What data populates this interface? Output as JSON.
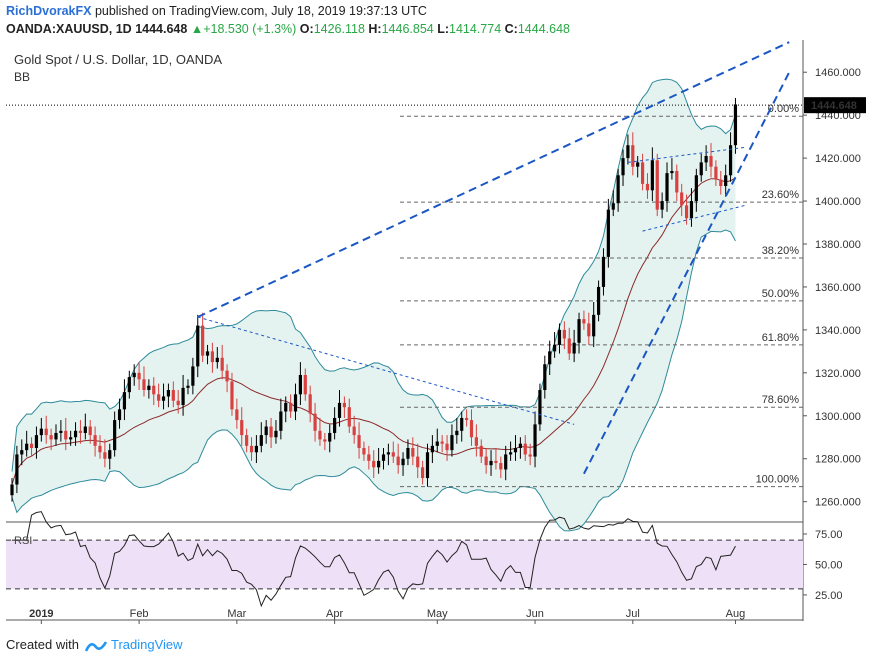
{
  "header": {
    "author": "RichDvorakFX",
    "published": "published on TradingView.com, July 18, 2019 19:37:13 UTC",
    "symbol": "OANDA:XAUUSD, 1D",
    "last": "1444.648",
    "change_icon": "triangle-up-icon",
    "change": "+18.530 (+1.3%)",
    "o_label": "O:",
    "o": "1426.118",
    "h_label": "H:",
    "h": "1446.854",
    "l_label": "L:",
    "l": "1414.774",
    "c_label": "C:",
    "c": "1444.648"
  },
  "legend": {
    "title": "Gold Spot / U.S. Dollar, 1D, OANDA",
    "indicator": "BB"
  },
  "rsi_label": "RSI",
  "footer": {
    "created_with": "Created with",
    "brand": "TradingView"
  },
  "colors": {
    "up": "#000000",
    "down": "#d94040",
    "bb_fill": "#e4f3f0",
    "bb_line": "#2e8a9a",
    "basis": "#8b2a2a",
    "trend": "#1a56c4",
    "rsi_fill": "#eee1f7"
  },
  "chart_data": {
    "type": "candlestick",
    "price_axis": {
      "ticks": [
        "1460.000",
        "1440.000",
        "1420.000",
        "1400.000",
        "1380.000",
        "1360.000",
        "1340.000",
        "1320.000",
        "1300.000",
        "1280.000",
        "1260.000"
      ],
      "range": [
        1251,
        1475
      ]
    },
    "rsi_axis": {
      "ticks": [
        "75.00",
        "50.00",
        "25.00"
      ],
      "range": [
        20,
        84
      ]
    },
    "x_ticks": [
      "2019",
      "Feb",
      "Mar",
      "Apr",
      "May",
      "Jun",
      "Jul",
      "Aug"
    ],
    "last_price": "1444.648",
    "fib_levels": [
      {
        "label": "0.00%",
        "value": 1439.5
      },
      {
        "label": "23.60%",
        "value": 1399.5
      },
      {
        "label": "38.20%",
        "value": 1373.5
      },
      {
        "label": "50.00%",
        "value": 1353.5
      },
      {
        "label": "61.80%",
        "value": 1333.0
      },
      {
        "label": "78.60%",
        "value": 1304.0
      },
      {
        "label": "100.00%",
        "value": 1267.0
      }
    ],
    "closes": [
      1268,
      1282,
      1284,
      1287,
      1285,
      1291,
      1294,
      1291,
      1289,
      1292,
      1293,
      1289,
      1290,
      1293,
      1292,
      1295,
      1291,
      1286,
      1283,
      1280,
      1284,
      1298,
      1303,
      1311,
      1318,
      1320,
      1317,
      1312,
      1314,
      1310,
      1307,
      1309,
      1312,
      1307,
      1305,
      1313,
      1314,
      1323,
      1342,
      1328,
      1330,
      1325,
      1327,
      1321,
      1316,
      1303,
      1298,
      1291,
      1286,
      1283,
      1286,
      1291,
      1295,
      1290,
      1293,
      1302,
      1306,
      1302,
      1310,
      1319,
      1310,
      1301,
      1293,
      1289,
      1288,
      1292,
      1299,
      1306,
      1304,
      1295,
      1291,
      1285,
      1282,
      1279,
      1276,
      1279,
      1282,
      1283,
      1281,
      1277,
      1280,
      1285,
      1281,
      1276,
      1271,
      1283,
      1286,
      1288,
      1287,
      1284,
      1291,
      1293,
      1299,
      1298,
      1290,
      1286,
      1281,
      1277,
      1279,
      1278,
      1275,
      1282,
      1283,
      1285,
      1287,
      1282,
      1281,
      1296,
      1312,
      1324,
      1330,
      1333,
      1340,
      1336,
      1329,
      1334,
      1345,
      1343,
      1337,
      1347,
      1360,
      1374,
      1396,
      1399,
      1412,
      1420,
      1426,
      1416,
      1418,
      1408,
      1405,
      1419,
      1396,
      1400,
      1413,
      1414,
      1404,
      1398,
      1392,
      1400,
      1412,
      1418,
      1421,
      1416,
      1410,
      1407,
      1412,
      1426,
      1445
    ],
    "x_range": [
      0,
      160
    ]
  }
}
